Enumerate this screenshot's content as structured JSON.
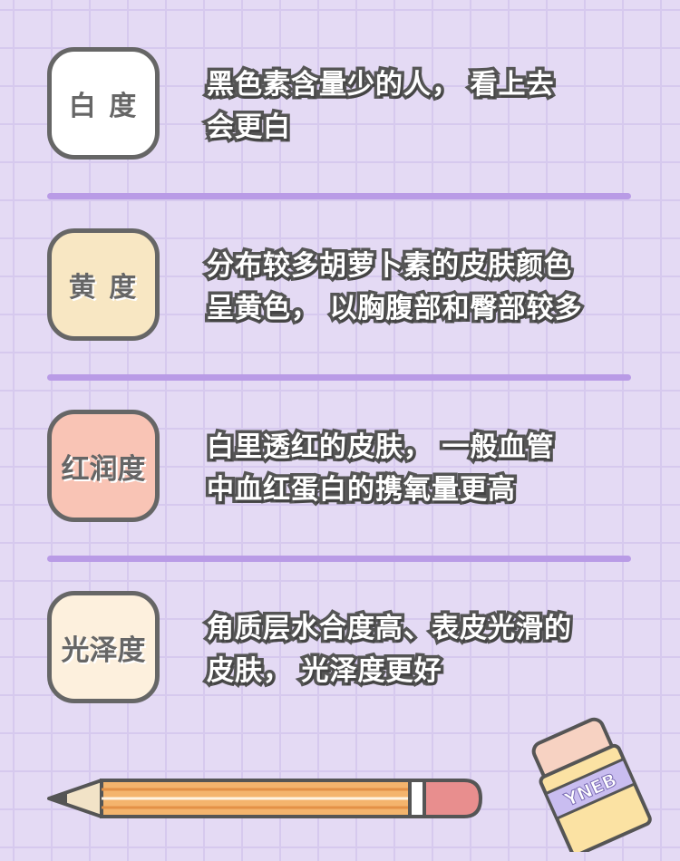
{
  "colors": {
    "background": "#e4daf4",
    "grid": "#d6c9ee",
    "divider": "#b99be6",
    "badge_white": "#ffffff",
    "badge_yellow": "#f8e7c3",
    "badge_pink": "#f9c4b5",
    "badge_cream": "#fdf0dd"
  },
  "items": [
    {
      "badge": "白 度",
      "description": "黑色素含量少的人， 看上去\n会更白",
      "badge_color": "#ffffff"
    },
    {
      "badge": "黄 度",
      "description": "分布较多胡萝卜素的皮肤颜色\n呈黄色， 以胸腹部和臀部较多",
      "badge_color": "#f8e7c3"
    },
    {
      "badge": "红润度",
      "description": "白里透红的皮肤， 一般血管\n中血红蛋白的携氧量更高",
      "badge_color": "#f9c4b5"
    },
    {
      "badge": "光泽度",
      "description": "角质层水合度高、表皮光滑的\n皮肤， 光泽度更好",
      "badge_color": "#fdf0dd"
    }
  ],
  "decorations": {
    "pencil_icon": "pencil-icon",
    "eraser_icon": "eraser-icon",
    "eraser_label": "YNEB"
  }
}
